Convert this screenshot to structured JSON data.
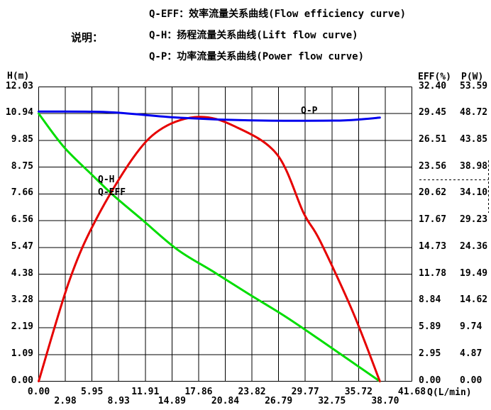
{
  "header": {
    "label": "说明：",
    "legend": [
      "Q-EFF：效率流量关系曲线(Flow efficiency curve)",
      "Q-H：扬程流量关系曲线(Lift flow curve)",
      "Q-P：功率流量关系曲线(Power flow curve)"
    ]
  },
  "colors": {
    "background": "#ffffff",
    "grid": "#000000",
    "q_h_curve": "#00dd00",
    "q_eff_curve": "#e60000",
    "q_p_curve": "#0000ee"
  },
  "chart_data": {
    "type": "line",
    "title": "",
    "xlabel": "Q(L/min)",
    "grid": true,
    "x_axis": {
      "min": 0,
      "max": 41.68,
      "ticks": [
        "0.00",
        "2.98",
        "5.95",
        "8.93",
        "11.91",
        "14.89",
        "17.86",
        "20.84",
        "23.82",
        "26.79",
        "29.77",
        "32.75",
        "35.72",
        "38.70",
        "41.68"
      ]
    },
    "y_left": {
      "label": "H(m)",
      "min": 0,
      "max": 12.03,
      "ticks": [
        "12.03",
        "10.94",
        "9.85",
        "8.75",
        "7.66",
        "6.56",
        "5.47",
        "4.38",
        "3.28",
        "2.19",
        "1.09",
        "0.00"
      ]
    },
    "y_right_eff": {
      "label": "EFF(%)",
      "min": 0,
      "max": 32.4,
      "ticks": [
        "32.40",
        "29.45",
        "26.51",
        "23.56",
        "20.62",
        "17.67",
        "14.73",
        "11.78",
        "8.84",
        "5.89",
        "2.95",
        "0.00"
      ]
    },
    "y_right_p": {
      "label": "P(W)",
      "min": 0,
      "max": 53.59,
      "ticks": [
        "53.59",
        "48.72",
        "43.85",
        "38.98",
        "34.10",
        "29.23",
        "24.36",
        "19.49",
        "14.62",
        "9.74",
        "4.87",
        "0.00"
      ]
    },
    "series": [
      {
        "name": "Q-H",
        "label": "Q-H",
        "axis": "y_left",
        "color_key": "q_h_curve",
        "points": [
          [
            0,
            10.94
          ],
          [
            2.8,
            9.58
          ],
          [
            6.0,
            8.42
          ],
          [
            8.4,
            7.58
          ],
          [
            11.5,
            6.62
          ],
          [
            15.5,
            5.38
          ],
          [
            19.5,
            4.48
          ],
          [
            23.4,
            3.58
          ],
          [
            27.4,
            2.68
          ],
          [
            31.3,
            1.72
          ],
          [
            38.1,
            0.0
          ]
        ]
      },
      {
        "name": "Q-EFF",
        "label": "Q-EFF",
        "axis": "y_right_eff",
        "color_key": "q_eff_curve",
        "points": [
          [
            0,
            0.0
          ],
          [
            3.4,
            11.0
          ],
          [
            6.4,
            17.8
          ],
          [
            10.7,
            24.8
          ],
          [
            13.9,
            27.9
          ],
          [
            17.9,
            29.1
          ],
          [
            21.8,
            28.1
          ],
          [
            26.6,
            25.0
          ],
          [
            29.6,
            18.5
          ],
          [
            31.4,
            15.5
          ],
          [
            35.1,
            7.6
          ],
          [
            38.1,
            0.0
          ]
        ]
      },
      {
        "name": "Q-P",
        "label": "Q-P",
        "axis": "y_right_p",
        "color_key": "q_p_curve",
        "points": [
          [
            0,
            49.1
          ],
          [
            7.6,
            49.0
          ],
          [
            15.5,
            48.0
          ],
          [
            23.4,
            47.5
          ],
          [
            32.9,
            47.45
          ],
          [
            36.1,
            47.7
          ],
          [
            38.1,
            48.0
          ]
        ]
      }
    ],
    "annotations": {
      "dashed_bracket_right_margin": true
    }
  }
}
